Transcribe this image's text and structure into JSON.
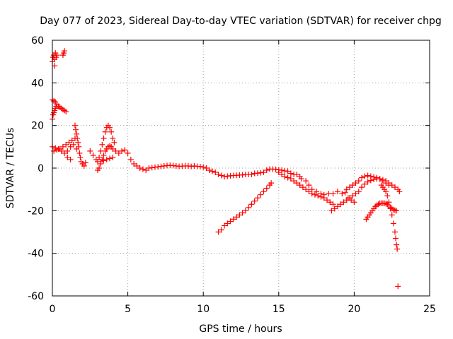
{
  "chart_data": {
    "type": "scatter",
    "title": "Day 077 of 2023, Sidereal Day-to-day VTEC variation (SDTVAR) for receiver chpg",
    "xlabel": "GPS time / hours",
    "ylabel": "SDTVAR / TECUs",
    "xlim": [
      0,
      25
    ],
    "ylim": [
      -60,
      60
    ],
    "x_ticks": [
      0,
      5,
      10,
      15,
      20,
      25
    ],
    "y_ticks": [
      -60,
      -40,
      -20,
      0,
      20,
      40,
      60
    ],
    "x_tick_labels": [
      "0",
      "5",
      "10",
      "15",
      "20",
      "25"
    ],
    "y_tick_labels": [
      "-60",
      "-40",
      "-20",
      "0",
      "20",
      "40",
      "60"
    ],
    "grid": true,
    "marker": "+",
    "color": "#ff0000",
    "series": [
      {
        "name": "early-high-cluster",
        "points": [
          [
            0.0,
            50
          ],
          [
            0.05,
            52
          ],
          [
            0.1,
            53
          ],
          [
            0.15,
            51
          ],
          [
            0.2,
            54
          ],
          [
            0.25,
            52
          ],
          [
            0.3,
            53
          ],
          [
            0.15,
            48
          ],
          [
            0.7,
            53
          ],
          [
            0.75,
            54
          ],
          [
            0.8,
            55
          ]
        ]
      },
      {
        "name": "early-arc-30",
        "points": [
          [
            0.0,
            32
          ],
          [
            0.1,
            31.5
          ],
          [
            0.2,
            31
          ],
          [
            0.3,
            30
          ],
          [
            0.4,
            29
          ],
          [
            0.5,
            28.5
          ],
          [
            0.6,
            28
          ],
          [
            0.7,
            27.5
          ],
          [
            0.8,
            27
          ],
          [
            0.9,
            26.5
          ],
          [
            0.0,
            23
          ],
          [
            0.05,
            25
          ],
          [
            0.1,
            26
          ],
          [
            0.15,
            27
          ],
          [
            0.2,
            28
          ],
          [
            0.25,
            29
          ]
        ]
      },
      {
        "name": "early-band-10",
        "points": [
          [
            0.0,
            10
          ],
          [
            0.2,
            9.5
          ],
          [
            0.4,
            9
          ],
          [
            0.6,
            8
          ],
          [
            0.8,
            7
          ],
          [
            1.0,
            5
          ],
          [
            1.2,
            4
          ],
          [
            0.1,
            8
          ],
          [
            0.3,
            8.5
          ],
          [
            0.5,
            9
          ],
          [
            0.7,
            10
          ],
          [
            0.9,
            11
          ],
          [
            1.1,
            12
          ],
          [
            1.3,
            13
          ],
          [
            1.5,
            14
          ],
          [
            1.0,
            8
          ],
          [
            1.2,
            10
          ],
          [
            1.4,
            11
          ],
          [
            1.6,
            9
          ]
        ]
      },
      {
        "name": "hump-1p5",
        "points": [
          [
            1.5,
            20
          ],
          [
            1.55,
            18
          ],
          [
            1.6,
            16
          ],
          [
            1.65,
            14
          ],
          [
            1.7,
            12
          ],
          [
            1.75,
            10
          ],
          [
            1.8,
            7
          ],
          [
            1.85,
            5
          ],
          [
            1.9,
            3
          ],
          [
            2.0,
            2
          ],
          [
            2.1,
            1
          ],
          [
            2.2,
            2.5
          ]
        ]
      },
      {
        "name": "hump-3p5",
        "points": [
          [
            2.5,
            8
          ],
          [
            2.7,
            6
          ],
          [
            2.9,
            4
          ],
          [
            3.0,
            3
          ],
          [
            3.1,
            5
          ],
          [
            3.2,
            8
          ],
          [
            3.3,
            11
          ],
          [
            3.4,
            14
          ],
          [
            3.5,
            17
          ],
          [
            3.6,
            19
          ],
          [
            3.7,
            20
          ],
          [
            3.8,
            19
          ],
          [
            3.9,
            17
          ],
          [
            4.0,
            14
          ],
          [
            4.1,
            12
          ],
          [
            3.0,
            -1
          ],
          [
            3.1,
            0
          ],
          [
            3.2,
            2
          ],
          [
            3.3,
            4
          ],
          [
            3.4,
            6
          ],
          [
            3.5,
            8
          ],
          [
            3.6,
            9
          ],
          [
            3.7,
            10
          ],
          [
            3.8,
            10.5
          ],
          [
            3.9,
            10
          ],
          [
            4.0,
            9
          ],
          [
            4.2,
            8
          ],
          [
            4.4,
            7
          ],
          [
            4.6,
            8
          ],
          [
            4.8,
            8.5
          ],
          [
            3.2,
            3
          ],
          [
            3.4,
            3.5
          ],
          [
            3.6,
            4
          ],
          [
            3.8,
            4.5
          ],
          [
            4.0,
            5
          ]
        ]
      },
      {
        "name": "main-trace",
        "points": [
          [
            5.0,
            7
          ],
          [
            5.2,
            4
          ],
          [
            5.4,
            2
          ],
          [
            5.6,
            1
          ],
          [
            5.8,
            0
          ],
          [
            6.0,
            -0.5
          ],
          [
            6.2,
            -1
          ],
          [
            6.4,
            0
          ],
          [
            6.6,
            0.2
          ],
          [
            6.8,
            0.4
          ],
          [
            7.0,
            0.6
          ],
          [
            7.2,
            0.8
          ],
          [
            7.4,
            1
          ],
          [
            7.6,
            1.2
          ],
          [
            7.8,
            1.3
          ],
          [
            8.0,
            1.2
          ],
          [
            8.2,
            1
          ],
          [
            8.4,
            0.8
          ],
          [
            8.6,
            0.9
          ],
          [
            8.8,
            1
          ],
          [
            9.0,
            1
          ],
          [
            9.2,
            0.8
          ],
          [
            9.4,
            1
          ],
          [
            9.6,
            0.8
          ],
          [
            9.8,
            0.7
          ],
          [
            10.0,
            0.5
          ],
          [
            10.2,
            0
          ],
          [
            10.4,
            -1
          ],
          [
            10.6,
            -1.5
          ],
          [
            10.8,
            -2
          ],
          [
            11.0,
            -3
          ],
          [
            11.2,
            -3.5
          ],
          [
            11.4,
            -4
          ],
          [
            11.6,
            -3.8
          ],
          [
            11.8,
            -3.6
          ],
          [
            12.0,
            -3.5
          ],
          [
            12.2,
            -3.4
          ],
          [
            12.4,
            -3.3
          ],
          [
            12.6,
            -3.2
          ],
          [
            12.8,
            -3
          ],
          [
            13.0,
            -3
          ],
          [
            13.2,
            -3
          ],
          [
            13.4,
            -2.5
          ],
          [
            13.6,
            -2.4
          ],
          [
            13.8,
            -2.2
          ],
          [
            14.0,
            -2
          ],
          [
            14.2,
            -1
          ],
          [
            14.4,
            -0.5
          ],
          [
            14.6,
            -0.5
          ],
          [
            14.8,
            -0.6
          ],
          [
            15.0,
            -0.8
          ],
          [
            15.2,
            -1
          ],
          [
            15.4,
            -1.3
          ],
          [
            15.6,
            -1.5
          ],
          [
            15.8,
            -2.5
          ],
          [
            16.0,
            -3
          ]
        ]
      },
      {
        "name": "low-ascending-arc",
        "points": [
          [
            11.0,
            -30
          ],
          [
            11.2,
            -29
          ],
          [
            11.4,
            -27
          ],
          [
            11.6,
            -26
          ],
          [
            11.8,
            -25
          ],
          [
            12.0,
            -24
          ],
          [
            12.2,
            -23
          ],
          [
            12.4,
            -22
          ],
          [
            12.6,
            -21
          ],
          [
            12.8,
            -20
          ],
          [
            13.0,
            -18.5
          ],
          [
            13.2,
            -17
          ],
          [
            13.4,
            -15.5
          ],
          [
            13.6,
            -14
          ],
          [
            13.8,
            -12.5
          ],
          [
            14.0,
            -11
          ],
          [
            14.2,
            -9.5
          ],
          [
            14.4,
            -8
          ],
          [
            14.5,
            -7
          ]
        ]
      },
      {
        "name": "mid-descending",
        "points": [
          [
            15.0,
            -2
          ],
          [
            15.2,
            -3
          ],
          [
            15.4,
            -4
          ],
          [
            15.6,
            -4.5
          ],
          [
            15.8,
            -5
          ],
          [
            16.0,
            -6
          ],
          [
            16.2,
            -7
          ],
          [
            16.4,
            -8
          ],
          [
            16.6,
            -9
          ],
          [
            16.8,
            -10
          ],
          [
            17.0,
            -11
          ],
          [
            17.2,
            -12
          ],
          [
            17.4,
            -12.5
          ],
          [
            17.6,
            -13
          ],
          [
            17.8,
            -13.5
          ],
          [
            18.0,
            -14
          ],
          [
            18.2,
            -15
          ],
          [
            18.4,
            -16
          ],
          [
            18.6,
            -17
          ],
          [
            16.5,
            -5
          ],
          [
            16.8,
            -6
          ],
          [
            17.0,
            -8
          ],
          [
            17.2,
            -10
          ],
          [
            17.5,
            -11
          ],
          [
            17.8,
            -12
          ],
          [
            18.0,
            -12.5
          ],
          [
            18.3,
            -12
          ],
          [
            18.6,
            -12
          ],
          [
            18.9,
            -11
          ],
          [
            16.2,
            -3
          ],
          [
            16.4,
            -4
          ]
        ]
      },
      {
        "name": "late-arc-a",
        "points": [
          [
            18.5,
            -20
          ],
          [
            18.7,
            -19
          ],
          [
            18.9,
            -18
          ],
          [
            19.1,
            -17
          ],
          [
            19.3,
            -16
          ],
          [
            19.5,
            -15
          ],
          [
            19.7,
            -14
          ],
          [
            19.9,
            -13
          ],
          [
            20.1,
            -12
          ],
          [
            20.3,
            -11
          ],
          [
            20.5,
            -9
          ],
          [
            20.7,
            -7.5
          ],
          [
            20.9,
            -6.5
          ],
          [
            21.1,
            -5.8
          ],
          [
            21.3,
            -5.3
          ],
          [
            21.5,
            -5
          ],
          [
            21.7,
            -5.1
          ],
          [
            21.9,
            -5.5
          ],
          [
            22.1,
            -6
          ],
          [
            22.3,
            -7
          ],
          [
            22.5,
            -8
          ],
          [
            22.7,
            -9
          ],
          [
            22.9,
            -10
          ],
          [
            23.0,
            -11
          ]
        ]
      },
      {
        "name": "late-arc-b",
        "points": [
          [
            19.5,
            -10
          ],
          [
            19.7,
            -9
          ],
          [
            19.9,
            -8
          ],
          [
            20.1,
            -7
          ],
          [
            20.3,
            -6
          ],
          [
            20.5,
            -4.5
          ],
          [
            20.7,
            -3.8
          ],
          [
            20.9,
            -3.5
          ],
          [
            21.1,
            -3.8
          ],
          [
            21.3,
            -4.2
          ],
          [
            21.5,
            -4.5
          ],
          [
            21.7,
            -5
          ],
          [
            21.9,
            -6
          ],
          [
            22.1,
            -7
          ],
          [
            22.3,
            -8
          ],
          [
            19.2,
            -12
          ],
          [
            19.4,
            -11.5
          ],
          [
            19.6,
            -14
          ],
          [
            19.8,
            -15
          ],
          [
            20.0,
            -16
          ]
        ]
      },
      {
        "name": "late-arc-c",
        "points": [
          [
            20.8,
            -24
          ],
          [
            20.9,
            -23
          ],
          [
            21.0,
            -22
          ],
          [
            21.1,
            -21
          ],
          [
            21.2,
            -20
          ],
          [
            21.3,
            -19
          ],
          [
            21.4,
            -18
          ],
          [
            21.5,
            -17.5
          ],
          [
            21.6,
            -17
          ],
          [
            21.7,
            -16.5
          ],
          [
            21.8,
            -16.5
          ],
          [
            21.9,
            -16.5
          ],
          [
            22.0,
            -16.5
          ],
          [
            22.1,
            -16.7
          ],
          [
            22.2,
            -17
          ],
          [
            22.3,
            -17.8
          ],
          [
            22.4,
            -18.5
          ],
          [
            22.5,
            -19
          ],
          [
            22.6,
            -19.5
          ],
          [
            22.7,
            -19.8
          ],
          [
            22.8,
            -20
          ]
        ]
      },
      {
        "name": "late-dive",
        "points": [
          [
            21.8,
            -8
          ],
          [
            21.9,
            -9
          ],
          [
            22.0,
            -10
          ],
          [
            22.1,
            -11
          ],
          [
            22.2,
            -13
          ],
          [
            22.3,
            -16
          ],
          [
            22.4,
            -19
          ],
          [
            22.5,
            -22
          ],
          [
            22.6,
            -26
          ],
          [
            22.7,
            -30
          ],
          [
            22.75,
            -33
          ],
          [
            22.8,
            -36
          ],
          [
            22.85,
            -38
          ]
        ]
      },
      {
        "name": "outlier",
        "points": [
          [
            22.9,
            -55.5
          ]
        ]
      }
    ]
  }
}
